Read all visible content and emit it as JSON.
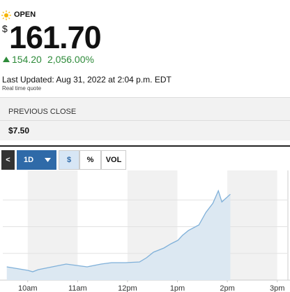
{
  "status": "OPEN",
  "currency": "$",
  "price": "161.70",
  "change": "154.20",
  "change_percent": "2,056.00%",
  "last_updated": "Last Updated: Aug 31, 2022 at 2:04 p.m. EDT",
  "quote_type": "Real time quote",
  "previous_close": {
    "label": "PREVIOUS CLOSE",
    "value": "$7.50"
  },
  "toolbar": {
    "back": "<",
    "range": "1D",
    "buttons": [
      "$",
      "%",
      "VOL"
    ]
  },
  "chart_data": {
    "type": "area",
    "color": "#7fb0d9",
    "fill": "#dce8f2",
    "x": [
      9.58,
      10.0,
      10.1,
      10.21,
      10.49,
      10.77,
      10.98,
      11.19,
      11.47,
      11.68,
      11.96,
      12.24,
      12.38,
      12.52,
      12.73,
      12.87,
      13.01,
      13.1,
      13.22,
      13.43,
      13.57,
      13.71,
      13.82,
      13.89,
      14.06
    ],
    "values": [
      19.4,
      14.3,
      12.2,
      15.3,
      19.4,
      23.4,
      21.4,
      19.4,
      23.4,
      25.5,
      25.5,
      26.5,
      32.6,
      40.8,
      46.9,
      53.0,
      58.1,
      65.2,
      72.4,
      80.5,
      98.8,
      112.1,
      130.4,
      114.1,
      125.3
    ],
    "xlim": [
      9.5,
      15.2
    ],
    "xticks": [
      {
        "value": 10,
        "label": "10am"
      },
      {
        "value": 11,
        "label": "11am"
      },
      {
        "value": 12,
        "label": "12pm"
      },
      {
        "value": 13,
        "label": "1pm"
      },
      {
        "value": 14,
        "label": "2pm"
      },
      {
        "value": 15,
        "label": "3pm"
      }
    ],
    "ylim": [
      0,
      160
    ],
    "yticks": [
      39,
      78,
      117
    ],
    "grid": true
  }
}
